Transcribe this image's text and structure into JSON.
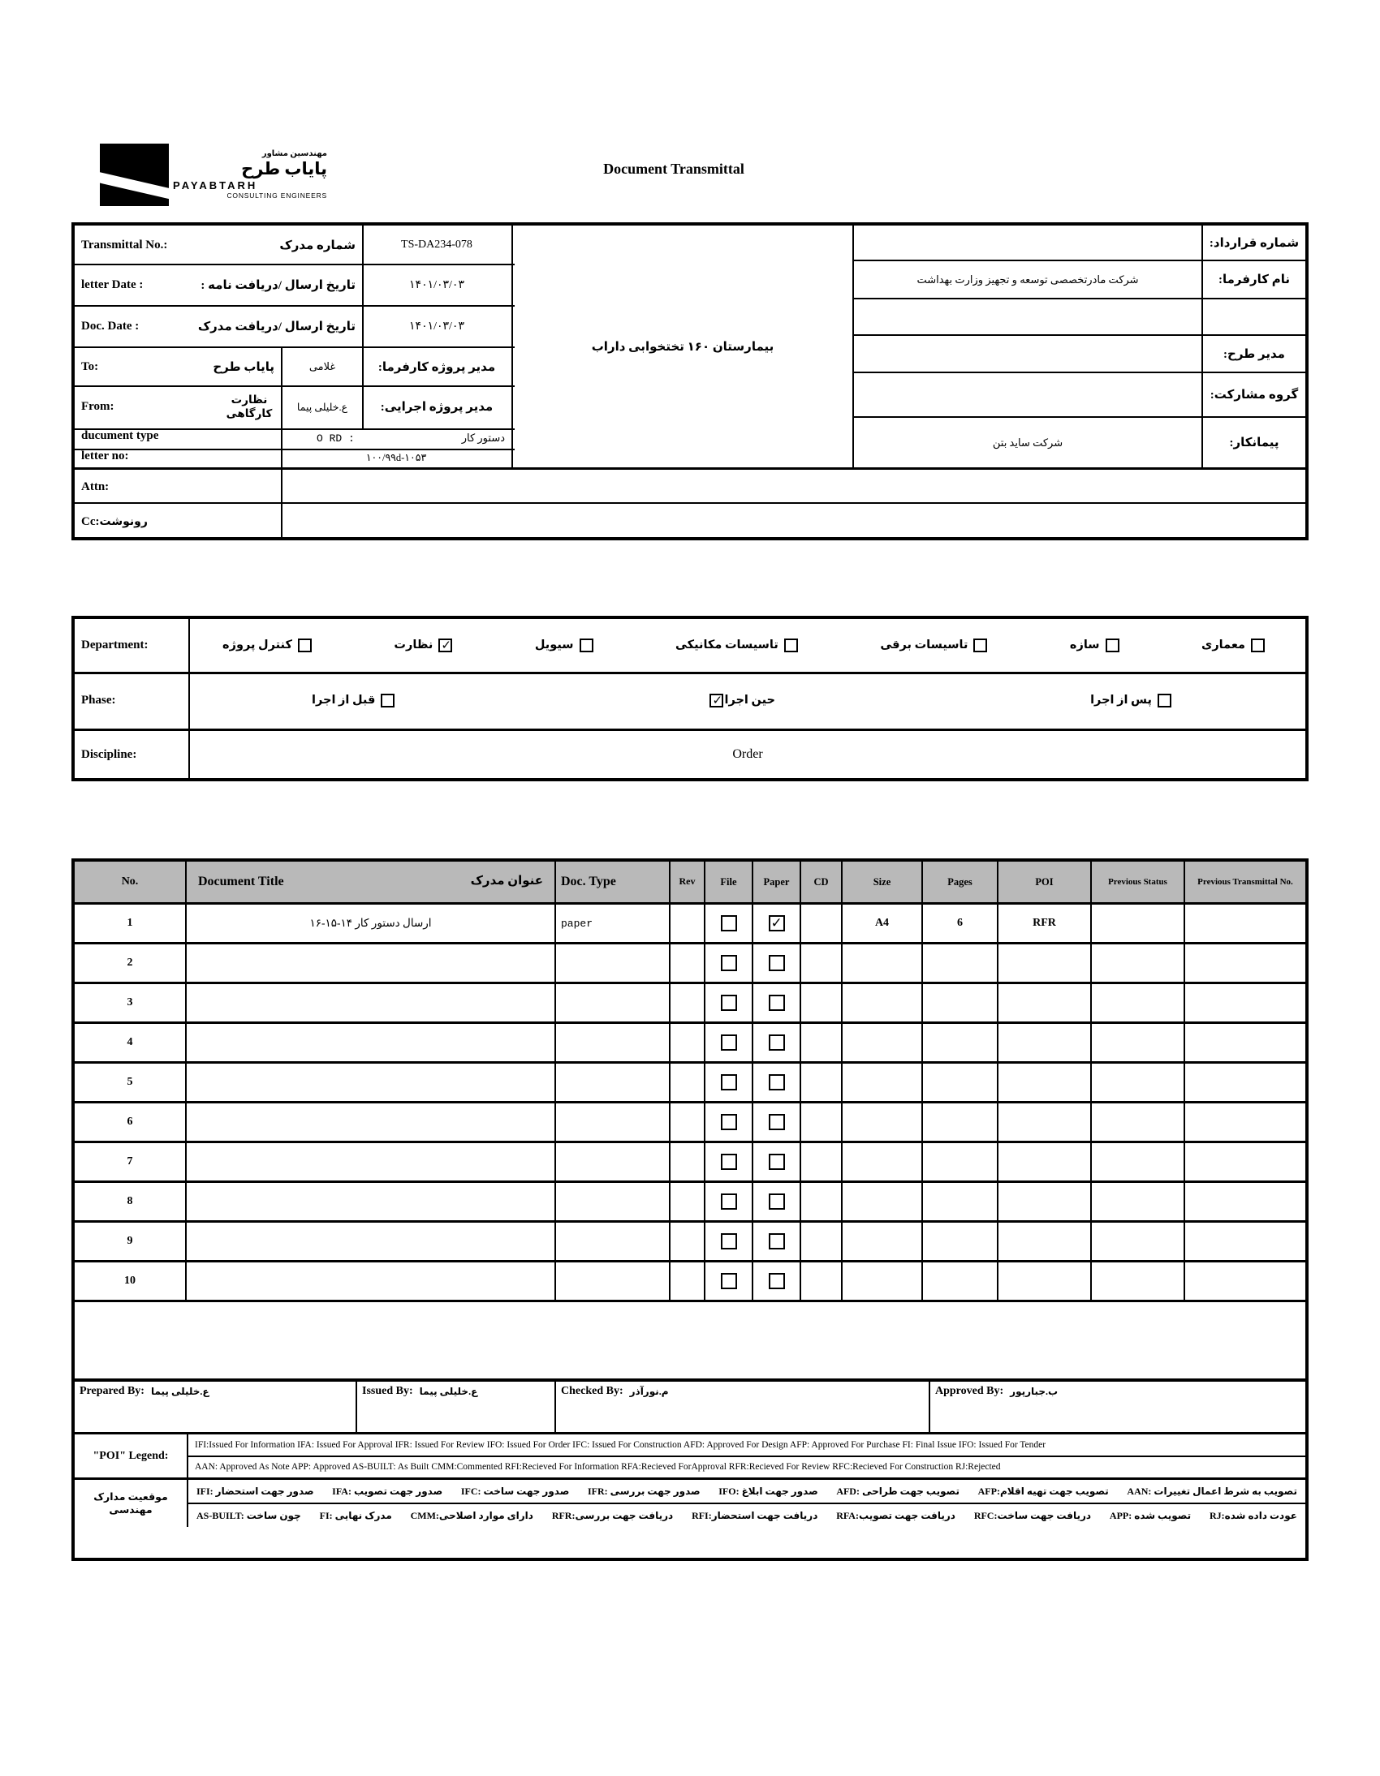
{
  "page_title": "Document Transmittal",
  "logo": {
    "fa_small": "مهندسین مشاور",
    "fa_large": "پایاب طرح",
    "en_name": "PAYABTARH",
    "en_sub": "CONSULTING ENGINEERS"
  },
  "info": {
    "transmittal_no": {
      "en": "Transmittal No.:",
      "fa": "شماره مدرک",
      "value": "TS-DA234-078"
    },
    "letter_date": {
      "en": "letter Date  :",
      "fa": "تاریخ ارسال /دریافت نامه :",
      "value": "۱۴۰۱/۰۳/۰۳"
    },
    "doc_date": {
      "en": "Doc. Date :",
      "fa": "تاریخ ارسال /دریافت مدرک",
      "value": "۱۴۰۱/۰۳/۰۳"
    },
    "to": {
      "en": "To:",
      "fa": "پایاب طرح",
      "person": "غلامی",
      "role_label": "مدیر پروژه کارفرما:"
    },
    "from": {
      "en": "From:",
      "fa": "نظارت کارگاهی",
      "person": "ع.خلیلی پیما",
      "role_label": "مدیر پروژه اجرایی:"
    },
    "document_type": {
      "en": "ducument type",
      "code": "O RD  :",
      "fa": "دستور کار"
    },
    "letter_no": {
      "en": "letter no:",
      "value": "۱۰۰/۹۹d-۱۰۵۳"
    },
    "attn": {
      "en": "Attn:"
    },
    "cc": {
      "en": "Cc:",
      "fa": "رونوشت"
    }
  },
  "project": {
    "name": "بیمارستان ۱۶۰ تختخوابی داراب",
    "contract_no_label": "شماره قرارداد:",
    "client_label": "نام کارفرما:",
    "client": "شرکت مادرتخصصی توسعه و تجهیز وزارت بهداشت",
    "pm_label": "مدیر طرح:",
    "partnership_label": "گروه مشارکت:",
    "contractor_label": "پیمانکار:",
    "contractor": "شرکت ساید بتن"
  },
  "department": {
    "label": "Department:",
    "items": [
      {
        "label": "معماری",
        "checked": false
      },
      {
        "label": "سازه",
        "checked": false
      },
      {
        "label": "تاسیسات برقی",
        "checked": false
      },
      {
        "label": "تاسیسات مکانیکی",
        "checked": false
      },
      {
        "label": "سیویل",
        "checked": false
      },
      {
        "label": "نظارت",
        "checked": true
      },
      {
        "label": "کنترل پروژه",
        "checked": false
      }
    ]
  },
  "phase": {
    "label": "Phase:",
    "items": [
      {
        "label": "پس از اجرا",
        "checked": false,
        "box_side": "right"
      },
      {
        "label": "حین اجرا",
        "checked": true,
        "box_side": "left"
      },
      {
        "label": "قبل از اجرا",
        "checked": false,
        "box_side": "right"
      }
    ]
  },
  "discipline": {
    "label": "Discipline:",
    "value": "Order"
  },
  "doc_table": {
    "headers": {
      "no": "No.",
      "title_en": "Document Title",
      "title_fa": "عنوان مدرک",
      "doc_type": "Doc. Type",
      "rev": "Rev",
      "file": "File",
      "paper": "Paper",
      "cd": "CD",
      "size": "Size",
      "pages": "Pages",
      "poi": "POI",
      "prev_status": "Previous Status",
      "prev_transmittal": "Previous Transmittal No."
    },
    "rows": [
      {
        "no": "1",
        "title": "ارسال دستور کار ۱۴-۱۵-۱۶",
        "doc_type": "paper",
        "rev": "",
        "file": false,
        "paper": true,
        "cd": "",
        "size": "A4",
        "pages": "6",
        "poi": "RFR",
        "prev_status": "",
        "prev_transmittal": ""
      },
      {
        "no": "2",
        "title": "",
        "doc_type": "",
        "rev": "",
        "file": false,
        "paper": false,
        "cd": "",
        "size": "",
        "pages": "",
        "poi": "",
        "prev_status": "",
        "prev_transmittal": ""
      },
      {
        "no": "3",
        "title": "",
        "doc_type": "",
        "rev": "",
        "file": false,
        "paper": false,
        "cd": "",
        "size": "",
        "pages": "",
        "poi": "",
        "prev_status": "",
        "prev_transmittal": ""
      },
      {
        "no": "4",
        "title": "",
        "doc_type": "",
        "rev": "",
        "file": false,
        "paper": false,
        "cd": "",
        "size": "",
        "pages": "",
        "poi": "",
        "prev_status": "",
        "prev_transmittal": ""
      },
      {
        "no": "5",
        "title": "",
        "doc_type": "",
        "rev": "",
        "file": false,
        "paper": false,
        "cd": "",
        "size": "",
        "pages": "",
        "poi": "",
        "prev_status": "",
        "prev_transmittal": ""
      },
      {
        "no": "6",
        "title": "",
        "doc_type": "",
        "rev": "",
        "file": false,
        "paper": false,
        "cd": "",
        "size": "",
        "pages": "",
        "poi": "",
        "prev_status": "",
        "prev_transmittal": ""
      },
      {
        "no": "7",
        "title": "",
        "doc_type": "",
        "rev": "",
        "file": false,
        "paper": false,
        "cd": "",
        "size": "",
        "pages": "",
        "poi": "",
        "prev_status": "",
        "prev_transmittal": ""
      },
      {
        "no": "8",
        "title": "",
        "doc_type": "",
        "rev": "",
        "file": false,
        "paper": false,
        "cd": "",
        "size": "",
        "pages": "",
        "poi": "",
        "prev_status": "",
        "prev_transmittal": ""
      },
      {
        "no": "9",
        "title": "",
        "doc_type": "",
        "rev": "",
        "file": false,
        "paper": false,
        "cd": "",
        "size": "",
        "pages": "",
        "poi": "",
        "prev_status": "",
        "prev_transmittal": ""
      },
      {
        "no": "10",
        "title": "",
        "doc_type": "",
        "rev": "",
        "file": false,
        "paper": false,
        "cd": "",
        "size": "",
        "pages": "",
        "poi": "",
        "prev_status": "",
        "prev_transmittal": ""
      }
    ]
  },
  "signatures": {
    "prepared": {
      "label": "Prepared By:",
      "name": "ع.خلیلی پیما"
    },
    "issued": {
      "label": "Issued By:",
      "name": "ع.خلیلی پیما"
    },
    "checked": {
      "label": "Checked By:",
      "name": "م.نورآذر"
    },
    "approved": {
      "label": "Approved By:",
      "name": "ب.جبارپور"
    }
  },
  "legend": {
    "poi_label": "\"POI\" Legend:",
    "en_line1": "IFI:Issued For Information  IFA: Issued For Approval  IFR: Issued For Review   IFO: Issued For Order  IFC: Issued For Construction AFD: Approved For Design AFP: Approved For Purchase  FI: Final Issue  IFO: Issued For Tender",
    "en_line2": "AAN: Approved As Note  APP: Approved  AS-BUILT: As Built CMM:Commented  RFI:Recieved For Information   RFA:Recieved ForApproval   RFR:Recieved For Review  RFC:Recieved For Construction  RJ:Rejected",
    "fa_label": "موقعیت مدارک مهندسی",
    "fa_line1": [
      "IFI:  صدور جهت استحضار",
      "IFA: صدور جهت تصویب",
      "IFC: صدور جهت ساخت",
      "IFR: صدور جهت بررسی",
      "IFO: صدور جهت ابلاغ",
      "AFD:  تصویب جهت طراحی",
      "AFP:تصویب جهت تهیه اقلام",
      "AAN: تصویب به شرط اعمال تغییرات"
    ],
    "fa_line2": [
      "AS-BUILT: چون ساخت",
      "FI: مدرک نهایی",
      "CMM:دارای موارد اصلاحی",
      "RFR:دریافت جهت بررسی",
      "RFI:دریافت جهت استحضار",
      "RFA:دریافت جهت تصویب",
      "RFC:دریافت جهت ساخت",
      "APP: تصویب شده",
      "RJ:عودت داده شده"
    ]
  }
}
